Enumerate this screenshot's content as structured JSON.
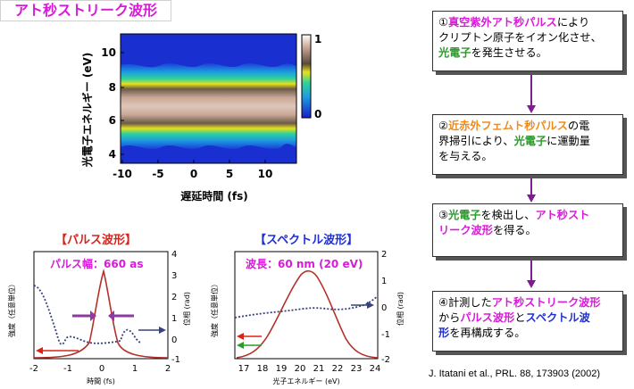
{
  "title": "アト秒ストリーク波形",
  "spectrogram": {
    "xlabel": "遅延時間 (fs)",
    "ylabel": "光電子エネルギー (eV)",
    "x_ticks": [
      "-10",
      "-5",
      "0",
      "5",
      "10"
    ],
    "y_ticks": [
      "10",
      "8",
      "6",
      "4"
    ],
    "colorbar_ticks": [
      "1",
      "0"
    ]
  },
  "pulse_panel": {
    "title": "【パルス波形】",
    "annotation": "パルス幅：660 as",
    "xlabel": "時間 (fs)",
    "ylabel_left": "強度（任意単位）",
    "ylabel_right": "位相 (rad)",
    "x_ticks": [
      "-2",
      "-1",
      "0",
      "1",
      "2"
    ],
    "y_right_ticks": [
      "4",
      "3",
      "2",
      "1",
      "0",
      "-1"
    ]
  },
  "spectrum_panel": {
    "title": "【スペクトル波形】",
    "annotation": "波長：60 nm (20 eV)",
    "xlabel": "光子エネルギー (eV)",
    "ylabel_left": "強度（任意単位）",
    "ylabel_right": "位相 (rad)",
    "x_ticks": [
      "17",
      "18",
      "19",
      "20",
      "21",
      "22",
      "23",
      "24"
    ],
    "y_right_ticks": [
      "2",
      "1",
      "0",
      "-1",
      "-2"
    ]
  },
  "steps": [
    {
      "prefix": "①",
      "p1": "真空紫外アト秒パルス",
      "p2": "により",
      "p3": "クリプトン原子をイオン化させ、",
      "p4": "光電子",
      "p5": "を発生させる。"
    },
    {
      "prefix": "②",
      "p1": "近赤外フェムト秒パルス",
      "p2": "の電",
      "p3": "界掃引により、",
      "p4": "光電子",
      "p5": "に運動量",
      "p6": "を与える。"
    },
    {
      "prefix": "③",
      "p1": "光電子",
      "p2": "を検出し、",
      "p3": "アト秒スト",
      "p4": "リーク波形",
      "p5": "を得る。"
    },
    {
      "prefix": "④",
      "p1": "計測した",
      "p2": "アト秒ストリーク波形",
      "p3": "から",
      "p4": "パルス波形",
      "p5": "と",
      "p6": "スペクトル波",
      "p7": "形",
      "p8": "を再構成する。"
    }
  ],
  "citation": "J. Itatani et al., PRL. 88, 173903 (2002)",
  "colors": {
    "magenta": "#d81bd8",
    "green": "#2b9a2b",
    "orange": "#f08a1a",
    "blue": "#1e2fd6",
    "arrow": "#7a1f8c"
  }
}
